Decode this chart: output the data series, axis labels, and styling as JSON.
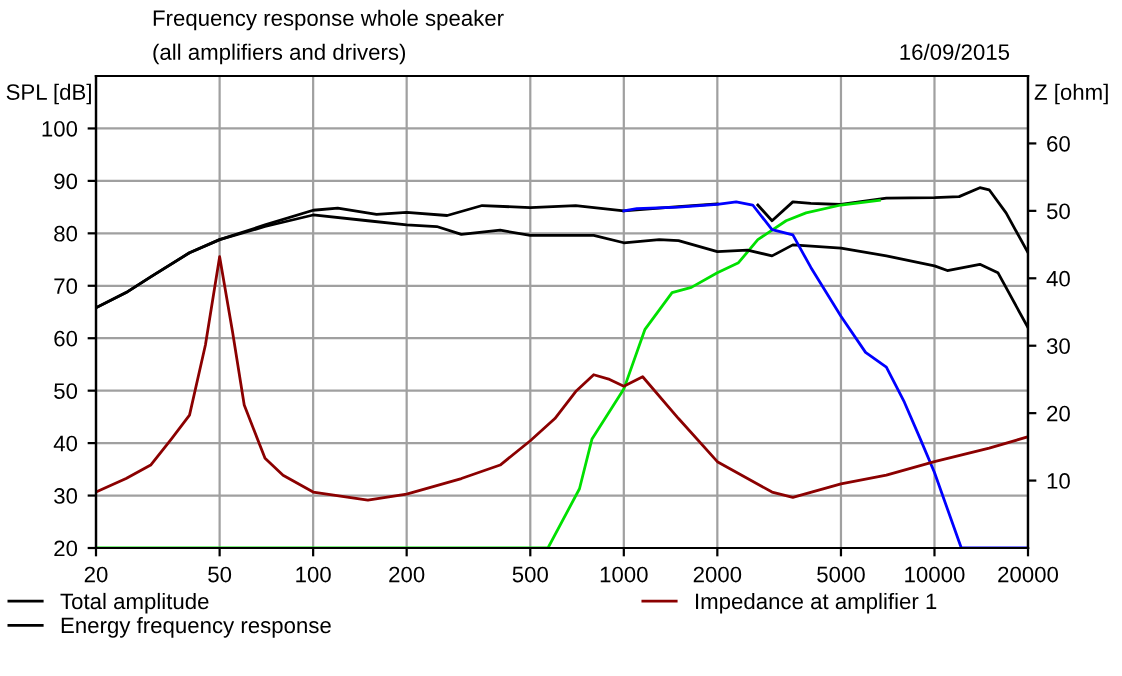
{
  "chart_data": {
    "type": "line",
    "title": "Frequency response whole speaker",
    "subtitle": "(all amplifiers and drivers)",
    "annotations": [
      "16/09/2015"
    ],
    "ylabel": "SPL [dB]",
    "y2label": "Z [ohm]",
    "log": "x",
    "xlim": [
      20,
      20000
    ],
    "xticks": [
      20,
      50,
      100,
      200,
      500,
      1000,
      2000,
      5000,
      10000,
      20000
    ],
    "ylim": [
      20,
      110
    ],
    "yticks": [
      20,
      30,
      40,
      50,
      60,
      70,
      80,
      90,
      100
    ],
    "y2lim": [
      0,
      70
    ],
    "y2ticks": [
      10,
      20,
      30,
      40,
      50,
      60
    ],
    "grid": true,
    "legend": "bottom",
    "line_style": "solid",
    "marker": "none",
    "series": [
      {
        "name": "Total amplitude",
        "color": "#000000",
        "x": [
          20,
          25,
          30,
          40,
          50,
          70,
          100,
          120,
          160,
          200,
          270,
          350,
          500,
          700,
          1000,
          1500,
          2000,
          2300,
          2700,
          3000,
          3500,
          4000,
          5000,
          7000,
          10000,
          12000,
          14000,
          15000,
          17000,
          20000
        ],
        "values": [
          65.8,
          68.7,
          71.7,
          76.3,
          78.8,
          81.6,
          84.4,
          84.8,
          83.6,
          84,
          83.4,
          85.3,
          84.9,
          85.3,
          84.3,
          85.1,
          85.6,
          null,
          85.4,
          82.4,
          86,
          85.7,
          85.5,
          86.7,
          86.8,
          87,
          88.7,
          88.3,
          83.9,
          76.3
        ]
      },
      {
        "color": "#00e000",
        "x": [
          20,
          562,
          570,
          720,
          790,
          1000,
          1170,
          1430,
          1650,
          2000,
          2340,
          2700,
          3330,
          3860,
          5000,
          6650
        ],
        "values": [
          20,
          20,
          20,
          31.3,
          40.8,
          50.3,
          61.7,
          68.7,
          69.7,
          72.5,
          74.4,
          78.8,
          82.4,
          83.9,
          85.4,
          86.3
        ]
      },
      {
        "name": "Energy frequency response",
        "color": "#000000",
        "x": [
          20,
          25,
          30,
          40,
          50,
          70,
          100,
          150,
          200,
          250,
          300,
          400,
          500,
          700,
          800,
          1000,
          1300,
          1500,
          2000,
          2500,
          3000,
          3500,
          5000,
          7000,
          10000,
          11000,
          14000,
          16000,
          20000
        ],
        "values": [
          65.8,
          68.7,
          71.7,
          76.3,
          78.8,
          81.3,
          83.5,
          82.4,
          81.6,
          81.3,
          79.8,
          80.6,
          79.6,
          79.6,
          79.6,
          78.2,
          78.8,
          78.6,
          76.5,
          76.8,
          75.7,
          77.8,
          77.2,
          75.7,
          73.8,
          72.9,
          74.1,
          72.5,
          62
        ]
      },
      {
        "color": "#0000ff",
        "x": [
          1000,
          1100,
          1500,
          2000,
          2300,
          2600,
          3000,
          3500,
          4000,
          5000,
          6000,
          7000,
          8000,
          9000,
          10000,
          12200,
          20000
        ],
        "values": [
          84.3,
          84.7,
          85,
          85.5,
          86,
          85.4,
          80.7,
          79.7,
          73.5,
          64.2,
          57.3,
          54.5,
          47.8,
          40.8,
          34.4,
          20,
          20
        ]
      },
      {
        "name": "Impedance at amplifier 1",
        "color": "#8b0000",
        "axis": "y2",
        "x": [
          20,
          25,
          30,
          35,
          40,
          45,
          50,
          55,
          60,
          70,
          80,
          100,
          150,
          200,
          300,
          400,
          500,
          600,
          700,
          800,
          900,
          1000,
          1150,
          1500,
          2000,
          3000,
          3500,
          5000,
          7000,
          10000,
          15000,
          20000
        ],
        "values": [
          8.3,
          10.3,
          12.3,
          16.2,
          19.7,
          30.1,
          43.2,
          32.1,
          21.2,
          13.3,
          10.8,
          8.3,
          7.1,
          8,
          10.3,
          12.3,
          15.9,
          19.2,
          23.2,
          25.7,
          25,
          24,
          25.4,
          19.2,
          12.8,
          8.3,
          7.5,
          9.5,
          10.8,
          12.8,
          14.8,
          16.5
        ]
      }
    ]
  }
}
